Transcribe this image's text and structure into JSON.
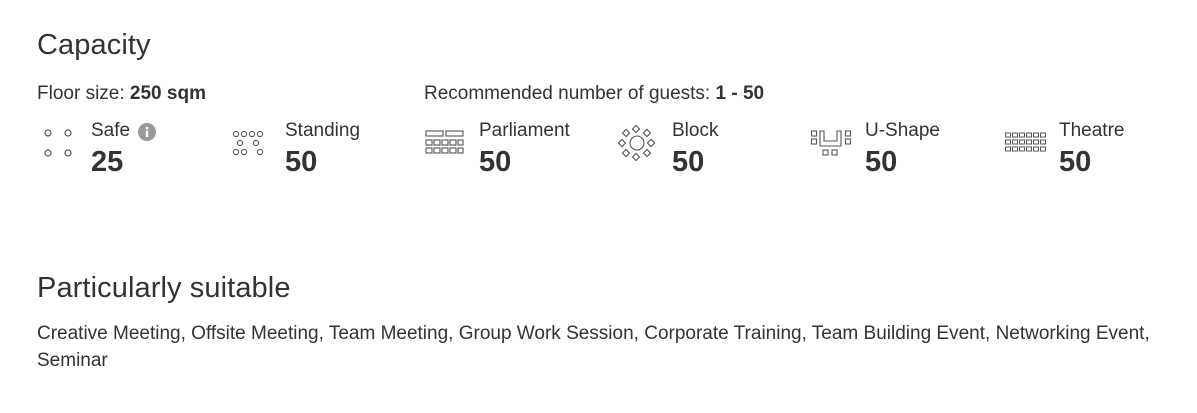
{
  "capacity": {
    "title": "Capacity",
    "floor_size_label": "Floor size:",
    "floor_size_value": "250 sqm",
    "recommended_label": "Recommended number of guests:",
    "recommended_value": "1 - 50",
    "layouts": [
      {
        "name": "Safe",
        "value": "25",
        "icon": "safe-layout-icon"
      },
      {
        "name": "Standing",
        "value": "50",
        "icon": "standing-layout-icon"
      },
      {
        "name": "Parliament",
        "value": "50",
        "icon": "parliament-layout-icon"
      },
      {
        "name": "Block",
        "value": "50",
        "icon": "block-layout-icon"
      },
      {
        "name": "U-Shape",
        "value": "50",
        "icon": "u-shape-layout-icon"
      },
      {
        "name": "Theatre",
        "value": "50",
        "icon": "theatre-layout-icon"
      }
    ]
  },
  "suitable": {
    "title": "Particularly suitable",
    "text": "Creative Meeting, Offsite Meeting, Team Meeting, Group Work Session, Corporate Training, Team Building Event, Networking Event, Seminar"
  },
  "colors": {
    "text": "#333333",
    "icon_stroke": "#555555",
    "info_icon": "#9a9a9a"
  }
}
